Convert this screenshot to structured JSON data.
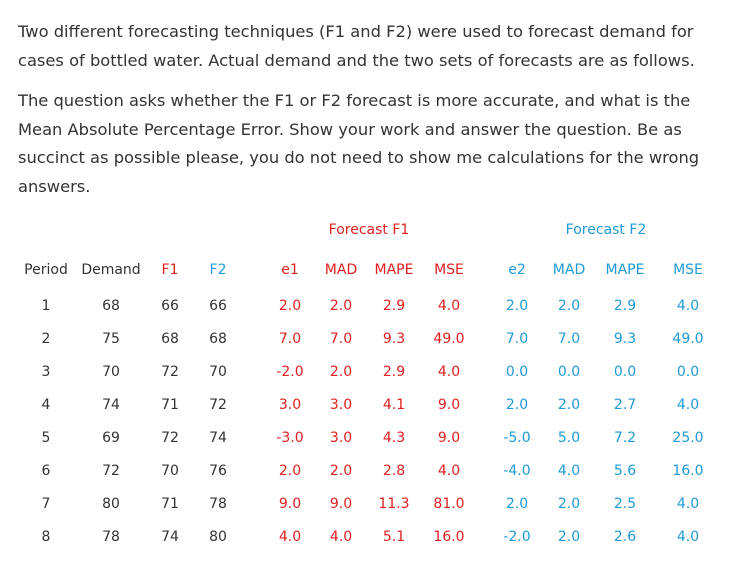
{
  "paragraphs": [
    "Two different forecasting techniques (F1 and F2) were used to forecast demand for cases of bottled water.  Actual demand and the two sets of forecasts are as follows.",
    "The question asks whether the F1 or F2 forecast is more accurate, and what is the Mean Absolute Percentage Error.  Show your work and answer the question.  Be as succinct as possible please, you do not need to show me calculations for the wrong answers."
  ],
  "table": {
    "group_headers": [
      "Forecast F1",
      "Forecast F2"
    ],
    "columns": [
      "Period",
      "Demand",
      "F1",
      "F2",
      "e1",
      "MAD",
      "MAPE",
      "MSE",
      "e2",
      "MAD",
      "MAPE",
      "MSE"
    ],
    "rows": [
      [
        "1",
        "68",
        "66",
        "66",
        "2.0",
        "2.0",
        "2.9",
        "4.0",
        "2.0",
        "2.0",
        "2.9",
        "4.0"
      ],
      [
        "2",
        "75",
        "68",
        "68",
        "7.0",
        "7.0",
        "9.3",
        "49.0",
        "7.0",
        "7.0",
        "9.3",
        "49.0"
      ],
      [
        "3",
        "70",
        "72",
        "70",
        "-2.0",
        "2.0",
        "2.9",
        "4.0",
        "0.0",
        "0.0",
        "0.0",
        "0.0"
      ],
      [
        "4",
        "74",
        "71",
        "72",
        "3.0",
        "3.0",
        "4.1",
        "9.0",
        "2.0",
        "2.0",
        "2.7",
        "4.0"
      ],
      [
        "5",
        "69",
        "72",
        "74",
        "-3.0",
        "3.0",
        "4.3",
        "9.0",
        "-5.0",
        "5.0",
        "7.2",
        "25.0"
      ],
      [
        "6",
        "72",
        "70",
        "76",
        "2.0",
        "2.0",
        "2.8",
        "4.0",
        "-4.0",
        "4.0",
        "5.6",
        "16.0"
      ],
      [
        "7",
        "80",
        "71",
        "78",
        "9.0",
        "9.0",
        "11.3",
        "81.0",
        "2.0",
        "2.0",
        "2.5",
        "4.0"
      ],
      [
        "8",
        "78",
        "74",
        "80",
        "4.0",
        "4.0",
        "5.1",
        "16.0",
        "-2.0",
        "2.0",
        "2.6",
        "4.0"
      ]
    ]
  },
  "colors": {
    "text": "#333333",
    "forecast_f1": "#e02020",
    "forecast_f2": "#1f9ad6"
  }
}
